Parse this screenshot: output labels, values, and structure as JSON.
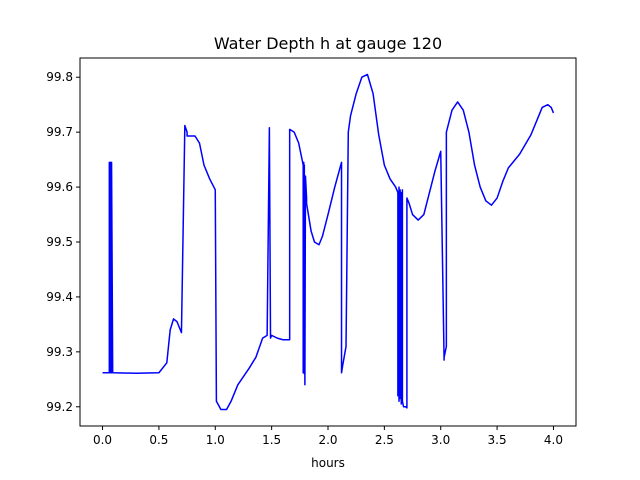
{
  "chart_data": {
    "type": "line",
    "title": "Water Depth h at gauge 120",
    "xlabel": "hours",
    "ylabel": "",
    "xlim": [
      -0.2,
      4.2
    ],
    "ylim": [
      99.165,
      99.835
    ],
    "xticks": [
      0.0,
      0.5,
      1.0,
      1.5,
      2.0,
      2.5,
      3.0,
      3.5,
      4.0
    ],
    "xtick_labels": [
      "0.0",
      "0.5",
      "1.0",
      "1.5",
      "2.0",
      "2.5",
      "3.0",
      "3.5",
      "4.0"
    ],
    "yticks": [
      99.2,
      99.3,
      99.4,
      99.5,
      99.6,
      99.7,
      99.8
    ],
    "ytick_labels": [
      "99.2",
      "99.3",
      "99.4",
      "99.5",
      "99.6",
      "99.7",
      "99.8"
    ],
    "grid": false,
    "series": [
      {
        "color": "#0000ff",
        "x": [
          0.0,
          0.06,
          0.06,
          0.07,
          0.07,
          0.08,
          0.08,
          0.09,
          0.3,
          0.5,
          0.57,
          0.6,
          0.63,
          0.66,
          0.7,
          0.73,
          0.75,
          0.75,
          0.76,
          0.78,
          0.82,
          0.86,
          0.9,
          0.95,
          1.0,
          1.01,
          1.01,
          1.05,
          1.1,
          1.14,
          1.2,
          1.25,
          1.3,
          1.36,
          1.42,
          1.46,
          1.48,
          1.48,
          1.49,
          1.49,
          1.5,
          1.55,
          1.6,
          1.66,
          1.66,
          1.7,
          1.74,
          1.76,
          1.78,
          1.78,
          1.785,
          1.79,
          1.79,
          1.795,
          1.8,
          1.8,
          1.805,
          1.81,
          1.81,
          1.85,
          1.88,
          1.92,
          1.95,
          2.0,
          2.06,
          2.12,
          2.12,
          2.13,
          2.16,
          2.16,
          2.18,
          2.18,
          2.2,
          2.25,
          2.3,
          2.35,
          2.4,
          2.45,
          2.5,
          2.55,
          2.6,
          2.62,
          2.62,
          2.63,
          2.63,
          2.64,
          2.64,
          2.65,
          2.65,
          2.66,
          2.66,
          2.67,
          2.68,
          2.69,
          2.7,
          2.7,
          2.72,
          2.75,
          2.8,
          2.85,
          2.9,
          2.95,
          3.0,
          3.03,
          3.03,
          3.05,
          3.05,
          3.05,
          3.1,
          3.15,
          3.2,
          3.25,
          3.3,
          3.35,
          3.4,
          3.45,
          3.5,
          3.55,
          3.6,
          3.7,
          3.8,
          3.85,
          3.9,
          3.95,
          3.98,
          4.0
        ],
        "y": [
          99.262,
          99.262,
          99.645,
          99.645,
          99.262,
          99.262,
          99.645,
          99.262,
          99.261,
          99.262,
          99.28,
          99.34,
          99.36,
          99.355,
          99.335,
          99.712,
          99.7,
          99.693,
          99.693,
          99.693,
          99.693,
          99.68,
          99.64,
          99.615,
          99.595,
          99.21,
          99.21,
          99.195,
          99.195,
          99.21,
          99.24,
          99.255,
          99.27,
          99.29,
          99.325,
          99.33,
          99.708,
          99.708,
          99.325,
          99.325,
          99.33,
          99.325,
          99.322,
          99.322,
          99.705,
          99.7,
          99.68,
          99.66,
          99.64,
          99.262,
          99.645,
          99.26,
          99.64,
          99.24,
          99.62,
          99.62,
          99.6,
          99.58,
          99.57,
          99.52,
          99.5,
          99.495,
          99.51,
          99.55,
          99.6,
          99.645,
          99.262,
          99.275,
          99.31,
          99.315,
          99.7,
          99.7,
          99.73,
          99.77,
          99.8,
          99.805,
          99.77,
          99.695,
          99.64,
          99.615,
          99.6,
          99.59,
          99.22,
          99.6,
          99.21,
          99.595,
          99.215,
          99.59,
          99.205,
          99.595,
          99.21,
          99.2,
          99.2,
          99.2,
          99.198,
          99.58,
          99.57,
          99.55,
          99.54,
          99.55,
          99.59,
          99.63,
          99.665,
          99.285,
          99.29,
          99.31,
          99.315,
          99.7,
          99.74,
          99.755,
          99.74,
          99.7,
          99.64,
          99.6,
          99.575,
          99.567,
          99.58,
          99.61,
          99.635,
          99.66,
          99.695,
          99.72,
          99.745,
          99.75,
          99.745,
          99.735
        ]
      }
    ]
  }
}
